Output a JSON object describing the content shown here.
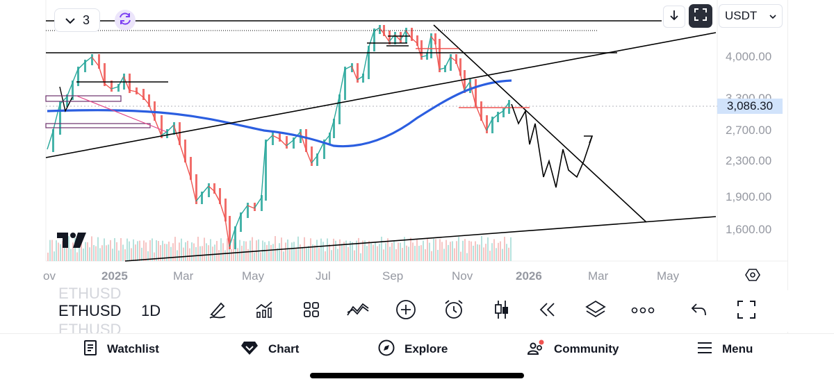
{
  "chart": {
    "layout_count": "3",
    "currency": "USDT",
    "current_price": "3,086.30",
    "price_axis": [
      "4,000.00",
      "3,300.00",
      "2,700.00",
      "2,300.00",
      "1,900.00",
      "1,600.00"
    ],
    "time_axis": [
      "ov",
      "2025",
      "Mar",
      "May",
      "Jul",
      "Sep",
      "Nov",
      "2026",
      "Mar",
      "May"
    ],
    "colors": {
      "ma_line": "#2b5ee0",
      "up": "#26a69a",
      "down": "#ef5350",
      "annotation": "#000000",
      "pink_line": "#e0478a"
    }
  },
  "toolbar": {
    "symbol": "ETHUSD",
    "interval": "1D",
    "tools": [
      {
        "name": "draw-icon"
      },
      {
        "name": "indicators-icon"
      },
      {
        "name": "templates-icon"
      },
      {
        "name": "compare-icon"
      },
      {
        "name": "add-icon"
      },
      {
        "name": "alert-icon"
      },
      {
        "name": "candles-icon"
      },
      {
        "name": "replay-icon"
      },
      {
        "name": "layers-icon"
      },
      {
        "name": "more-icon"
      },
      {
        "name": "undo-icon"
      },
      {
        "name": "fullscreen-icon"
      }
    ]
  },
  "nav": {
    "watchlist": "Watchlist",
    "chart": "Chart",
    "explore": "Explore",
    "community": "Community",
    "menu": "Menu"
  }
}
